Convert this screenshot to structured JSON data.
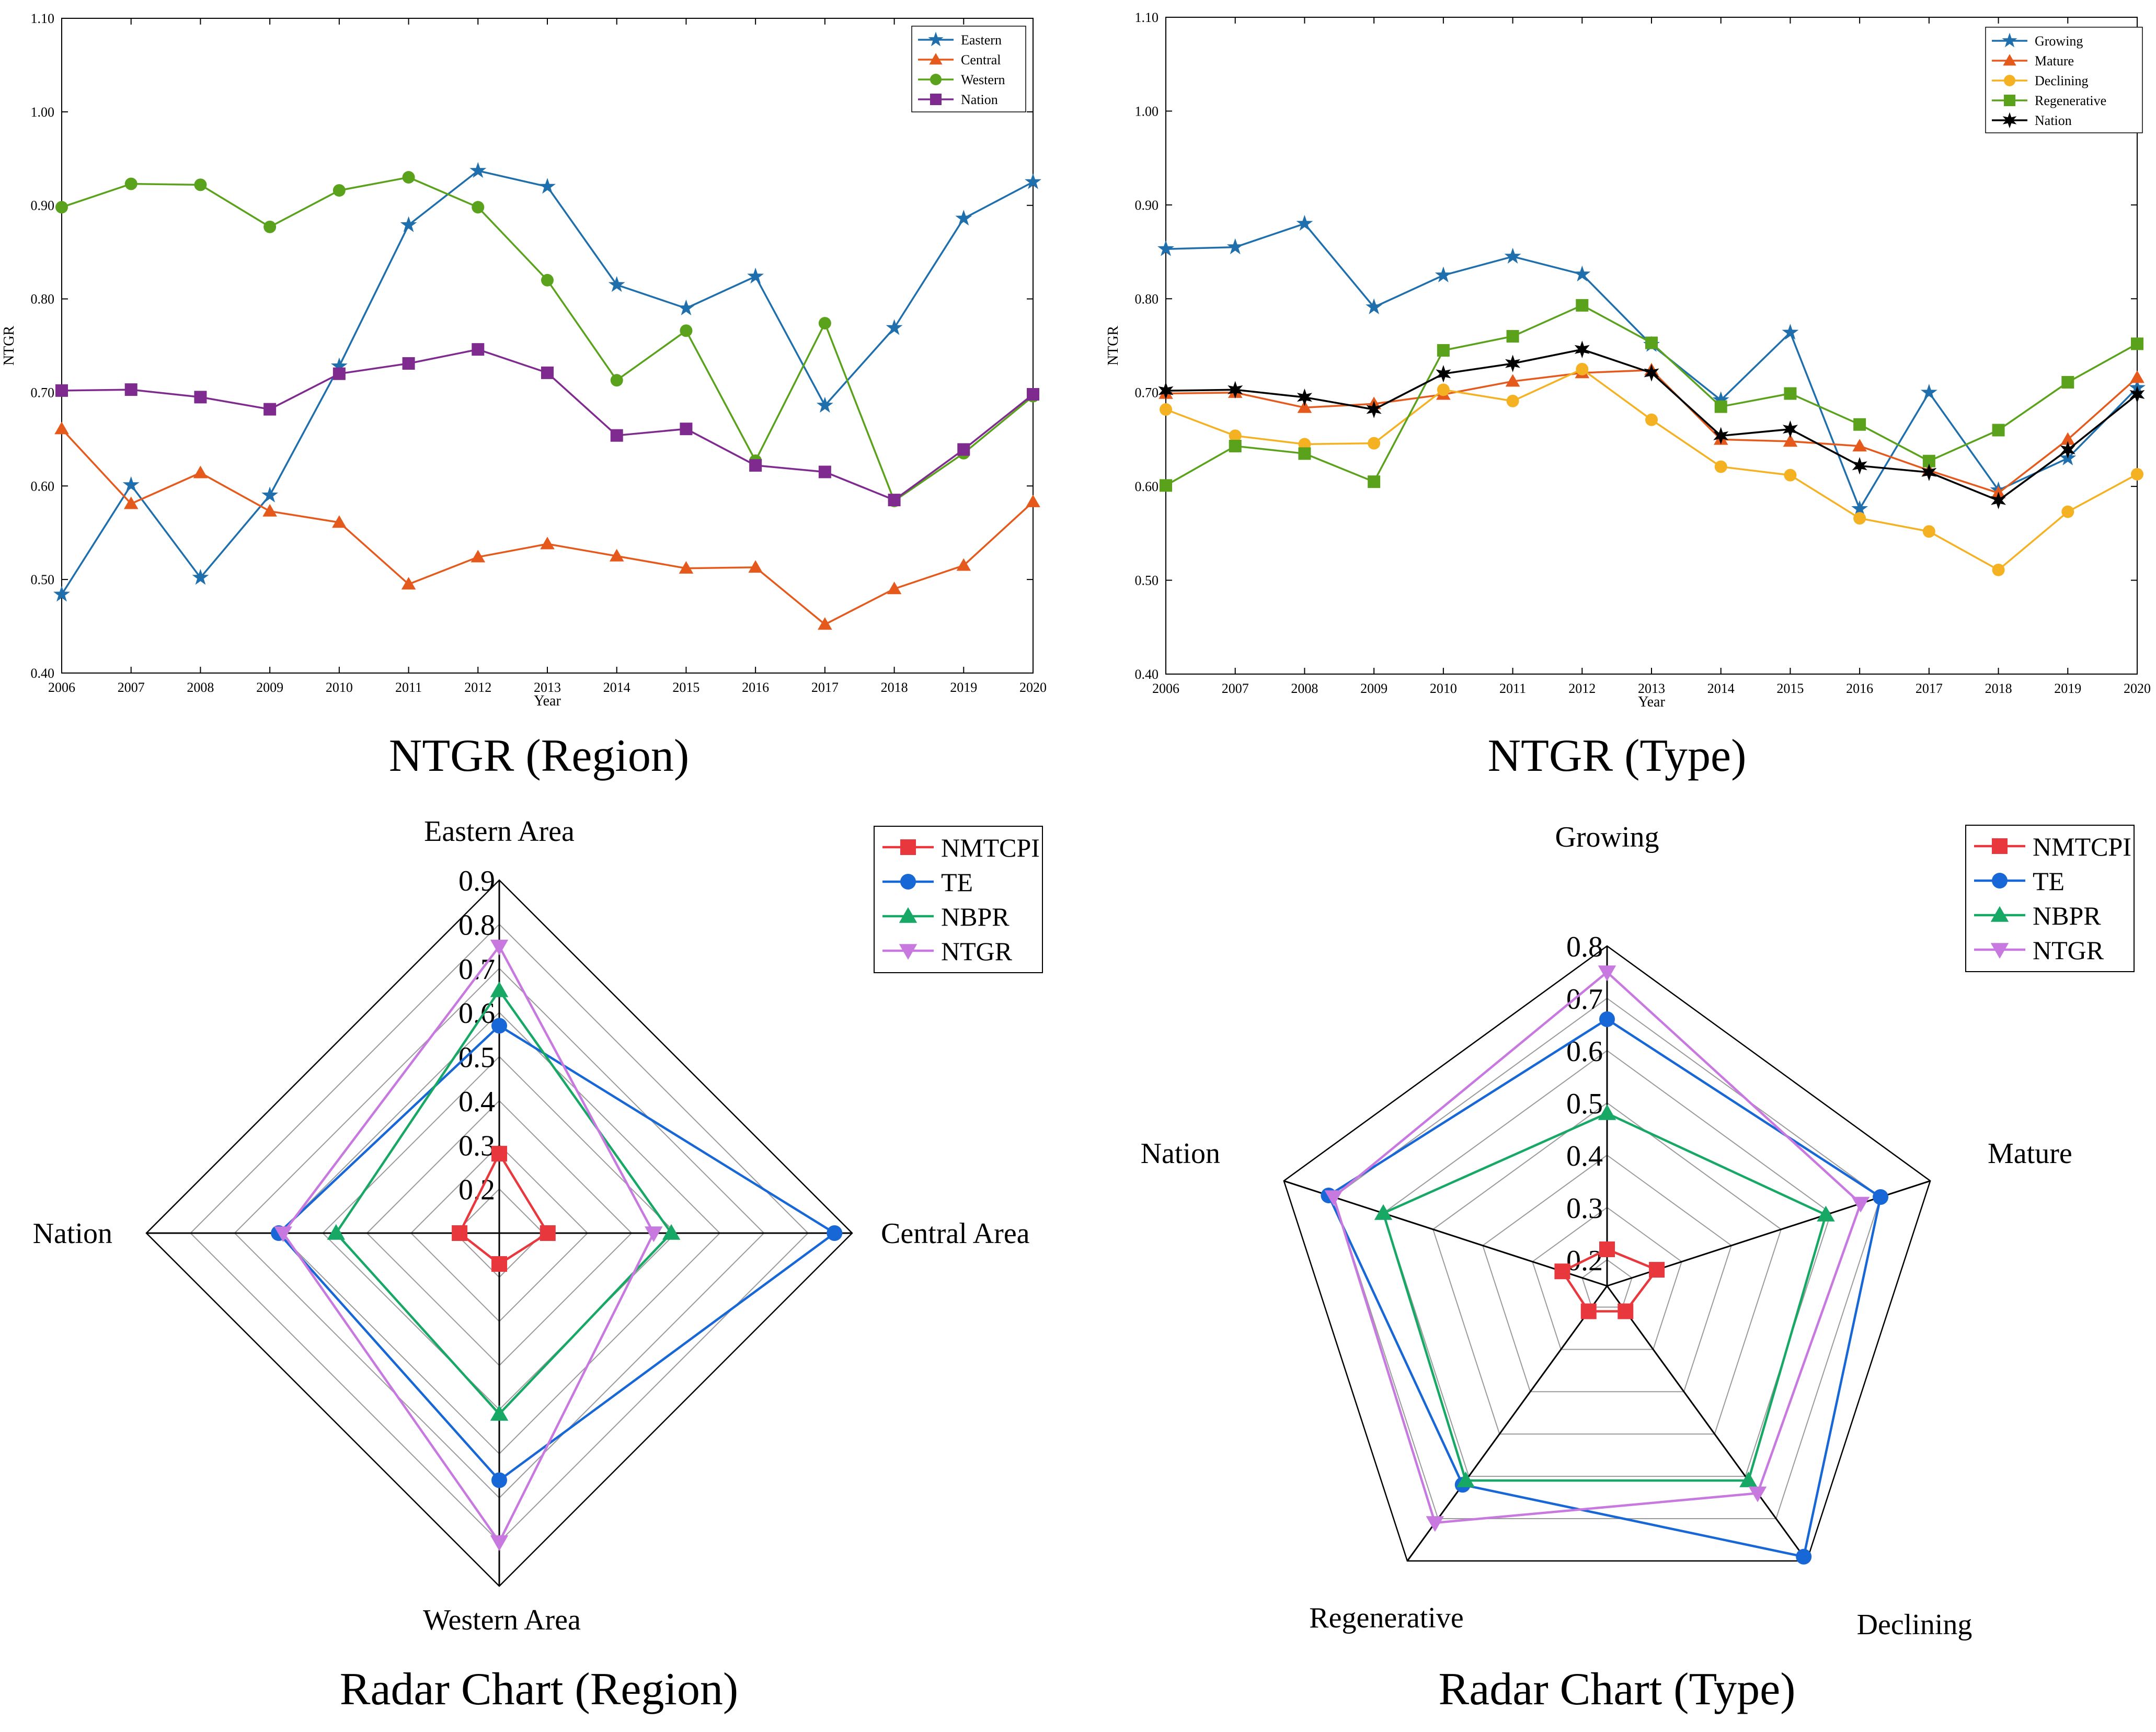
{
  "chart_data": [
    {
      "type": "line",
      "caption": "NTGR (Region)",
      "xlabel": "Year",
      "ylabel": "NTGR",
      "ylim": [
        0.4,
        1.1
      ],
      "yticks": [
        "0.40",
        "0.50",
        "0.60",
        "0.70",
        "0.80",
        "0.90",
        "1.00",
        "1.10"
      ],
      "x": [
        "2006",
        "2007",
        "2008",
        "2009",
        "2010",
        "2011",
        "2012",
        "2013",
        "2014",
        "2015",
        "2016",
        "2017",
        "2018",
        "2019",
        "2020"
      ],
      "legend_position": "top-right",
      "series": [
        {
          "name": "Eastern",
          "color": "#1f6fad",
          "marker": "star",
          "values": [
            0.484,
            0.601,
            0.502,
            0.59,
            0.728,
            0.879,
            0.937,
            0.92,
            0.815,
            0.79,
            0.824,
            0.686,
            0.769,
            0.886,
            0.925
          ]
        },
        {
          "name": "Central",
          "color": "#e55a1c",
          "marker": "triangle",
          "values": [
            0.661,
            0.581,
            0.614,
            0.573,
            0.561,
            0.495,
            0.524,
            0.538,
            0.525,
            0.512,
            0.513,
            0.452,
            0.49,
            0.515,
            0.583
          ]
        },
        {
          "name": "Western",
          "color": "#5aa21c",
          "marker": "circle",
          "values": [
            0.898,
            0.923,
            0.922,
            0.877,
            0.916,
            0.93,
            0.898,
            0.82,
            0.713,
            0.766,
            0.627,
            0.774,
            0.584,
            0.635,
            0.696
          ]
        },
        {
          "name": "Nation",
          "color": "#7e2a8e",
          "marker": "square",
          "values": [
            0.702,
            0.703,
            0.695,
            0.682,
            0.72,
            0.731,
            0.746,
            0.721,
            0.654,
            0.661,
            0.622,
            0.615,
            0.585,
            0.639,
            0.698
          ]
        }
      ]
    },
    {
      "type": "line",
      "caption": "NTGR (Type)",
      "xlabel": "Year",
      "ylabel": "NTGR",
      "ylim": [
        0.4,
        1.1
      ],
      "yticks": [
        "0.40",
        "0.50",
        "0.60",
        "0.70",
        "0.80",
        "0.90",
        "1.00",
        "1.10"
      ],
      "x": [
        "2006",
        "2007",
        "2008",
        "2009",
        "2010",
        "2011",
        "2012",
        "2013",
        "2014",
        "2015",
        "2016",
        "2017",
        "2018",
        "2019",
        "2020"
      ],
      "legend_position": "top-right",
      "series": [
        {
          "name": "Growing",
          "color": "#1f6fad",
          "marker": "star",
          "values": [
            0.853,
            0.855,
            0.88,
            0.791,
            0.825,
            0.845,
            0.826,
            0.751,
            0.692,
            0.764,
            0.576,
            0.7,
            0.596,
            0.63,
            0.705
          ]
        },
        {
          "name": "Mature",
          "color": "#e55a1c",
          "marker": "triangle",
          "values": [
            0.699,
            0.7,
            0.684,
            0.688,
            0.698,
            0.712,
            0.721,
            0.724,
            0.65,
            0.648,
            0.643,
            0.617,
            0.593,
            0.65,
            0.716
          ]
        },
        {
          "name": "Declining",
          "color": "#f4b223",
          "marker": "circle",
          "values": [
            0.682,
            0.654,
            0.645,
            0.646,
            0.703,
            0.691,
            0.725,
            0.671,
            0.621,
            0.612,
            0.566,
            0.552,
            0.511,
            0.573,
            0.613
          ]
        },
        {
          "name": "Regenerative",
          "color": "#5aa21c",
          "marker": "square",
          "values": [
            0.601,
            0.643,
            0.635,
            0.605,
            0.745,
            0.76,
            0.793,
            0.753,
            0.685,
            0.699,
            0.666,
            0.627,
            0.66,
            0.711,
            0.752
          ]
        },
        {
          "name": "Nation",
          "color": "#000000",
          "marker": "hexstar",
          "values": [
            0.702,
            0.703,
            0.695,
            0.682,
            0.72,
            0.731,
            0.746,
            0.721,
            0.654,
            0.661,
            0.622,
            0.615,
            0.585,
            0.639,
            0.698
          ]
        }
      ]
    },
    {
      "type": "radar",
      "caption": "Radar Chart (Region)",
      "axes": [
        "Eastern Area",
        "Central Area",
        "Western Area",
        "Nation"
      ],
      "rlim": [
        0.1,
        0.9
      ],
      "rticks": [
        "0.2",
        "0.3",
        "0.4",
        "0.5",
        "0.6",
        "0.7",
        "0.8",
        "0.9"
      ],
      "legend_position": "top-right",
      "series": [
        {
          "name": "NMTCPI",
          "color": "#e8383d",
          "marker": "square",
          "values": [
            0.28,
            0.21,
            0.17,
            0.19
          ]
        },
        {
          "name": "TE",
          "color": "#1767d6",
          "marker": "circle",
          "values": [
            0.57,
            0.86,
            0.66,
            0.6
          ]
        },
        {
          "name": "NBPR",
          "color": "#17a866",
          "marker": "triangle",
          "values": [
            0.65,
            0.49,
            0.51,
            0.47
          ]
        },
        {
          "name": "NTGR",
          "color": "#c879e0",
          "marker": "triangle-down",
          "values": [
            0.75,
            0.45,
            0.8,
            0.59
          ]
        }
      ]
    },
    {
      "type": "radar",
      "caption": "Radar Chart (Type)",
      "axes": [
        "Growing",
        "Mature",
        "Declining",
        "Regenerative",
        "Nation"
      ],
      "rlim": [
        0.15,
        0.8
      ],
      "rticks": [
        "0.2",
        "0.3",
        "0.4",
        "0.5",
        "0.6",
        "0.7",
        "0.8"
      ],
      "legend_position": "top-right",
      "series": [
        {
          "name": "NMTCPI",
          "color": "#e8383d",
          "marker": "square",
          "values": [
            0.22,
            0.25,
            0.21,
            0.21,
            0.24
          ]
        },
        {
          "name": "TE",
          "color": "#1767d6",
          "marker": "circle",
          "values": [
            0.66,
            0.7,
            0.79,
            0.62,
            0.71
          ]
        },
        {
          "name": "NBPR",
          "color": "#17a866",
          "marker": "triangle",
          "values": [
            0.48,
            0.59,
            0.61,
            0.61,
            0.6
          ]
        },
        {
          "name": "NTGR",
          "color": "#c879e0",
          "marker": "triangle-down",
          "values": [
            0.75,
            0.66,
            0.64,
            0.71,
            0.7
          ]
        }
      ]
    }
  ]
}
